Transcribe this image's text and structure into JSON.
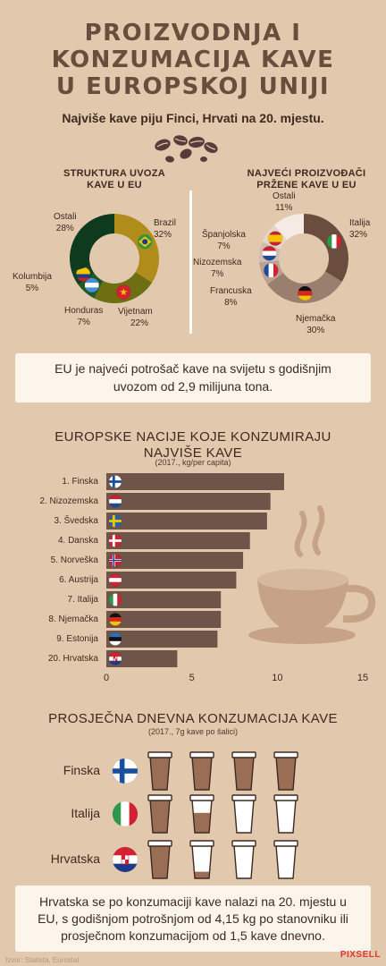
{
  "title_lines": [
    "PROIZVODNJA I",
    "KONZUMACIJA KAVE",
    "U EUROPSKOJ UNIJI"
  ],
  "subtitle": "Najviše kave piju Finci, Hrvati na 20. mjestu.",
  "colors": {
    "bg": "#e2c9ad",
    "dark_brown": "#3d2a20",
    "title_brown": "#6b4d3d",
    "bar": "#6f5549",
    "box": "#fbf5ec"
  },
  "chart_data": [
    {
      "type": "pie",
      "title": "STRUKTURA UVOZA KAVE U EU",
      "title_lines": [
        "STRUKTURA UVOZA",
        "KAVE U EU"
      ],
      "slices": [
        {
          "label": "Brazil",
          "value": 32,
          "text": "32%",
          "color": "#b08d1a",
          "flag": "brazil"
        },
        {
          "label": "Vijetnam",
          "value": 22,
          "text": "22%",
          "color": "#6e6f12",
          "flag": "vietnam"
        },
        {
          "label": "Honduras",
          "value": 7,
          "text": "7%",
          "color": "#1f5a26",
          "flag": "honduras"
        },
        {
          "label": "Kolumbija",
          "value": 5,
          "text": "5%",
          "color": "#134020",
          "flag": "colombia"
        },
        {
          "label": "Ostali",
          "value": 28,
          "text": "28%",
          "color": "#0e3a1e",
          "flag": ""
        }
      ]
    },
    {
      "type": "pie",
      "title": "NAJVEĆI PROIZVOĐAČI PRŽENE KAVE U EU",
      "title_lines": [
        "NAJVEĆI PROIZVOĐAČI",
        "PRŽENE KAVE U EU"
      ],
      "slices": [
        {
          "label": "Italija",
          "value": 32,
          "text": "32%",
          "color": "#6a4d3f",
          "flag": "italy"
        },
        {
          "label": "Njemačka",
          "value": 30,
          "text": "30%",
          "color": "#9a7f6f",
          "flag": "germany"
        },
        {
          "label": "Francuska",
          "value": 8,
          "text": "8%",
          "color": "#bba191",
          "flag": "france"
        },
        {
          "label": "Nizozemska",
          "value": 7,
          "text": "7%",
          "color": "#d0bcae",
          "flag": "netherlands"
        },
        {
          "label": "Španjolska",
          "value": 7,
          "text": "7%",
          "color": "#e4d6cb",
          "flag": "spain"
        },
        {
          "label": "Ostali",
          "value": 11,
          "text": "11%",
          "color": "#f3ebe4",
          "flag": ""
        }
      ]
    },
    {
      "type": "bar",
      "title": "EUROPSKE NACIJE KOJE KONZUMIRAJU NAJVIŠE KAVE",
      "title_lines": [
        "EUROPSKE NACIJE KOJE KONZUMIRAJU",
        "NAJVIŠE KAVE"
      ],
      "subtitle": "(2017., kg/per capita)",
      "categories": [
        "1. Finska",
        "2. Nizozemska",
        "3. Švedska",
        "4. Danska",
        "5. Norveška",
        "6. Austrija",
        "7. Italija",
        "8. Njemačka",
        "9. Estonija",
        "20. Hrvatska"
      ],
      "flags": [
        "finland",
        "netherlands",
        "sweden",
        "denmark",
        "norway",
        "austria",
        "italy",
        "germany",
        "estonia",
        "croatia"
      ],
      "values": [
        10.4,
        9.6,
        9.4,
        8.4,
        8.0,
        7.6,
        6.7,
        6.7,
        6.5,
        4.15
      ],
      "xlim": [
        0,
        15
      ],
      "xticks": [
        "0",
        "5",
        "10",
        "15"
      ]
    },
    {
      "type": "table",
      "title": "PROSJEČNA DNEVNA KONZUMACIJA  KAVE",
      "subtitle": "(2017., 7g kave po šalici)",
      "rows": [
        {
          "country": "Finska",
          "flag": "finland",
          "cups": 5
        },
        {
          "country": "Italija",
          "flag": "italy",
          "cups": 2
        },
        {
          "country": "Hrvatska",
          "flag": "croatia",
          "cups": 1.5
        }
      ],
      "max_cups": 5
    }
  ],
  "box1_lines": [
    "EU je najveći potrošač kave na svijetu s godišnjim",
    "uvozom od 2,9 milijuna tona."
  ],
  "box2_lines": [
    "Hrvatska se po konzumaciji kave nalazi na 20. mjestu u",
    "EU, s godišnjom potrošnjom od 4,15 kg po stanovniku ili",
    "prosječnom konzumacijom od 1,5 kave dnevno."
  ],
  "source": "Izvor: Statista, Eurostat",
  "logo": "PIXSELL",
  "icons": [
    "coffee-beans-icon",
    "coffee-cup-illustration-icon",
    "takeaway-cup-icon",
    "flag-icons"
  ]
}
